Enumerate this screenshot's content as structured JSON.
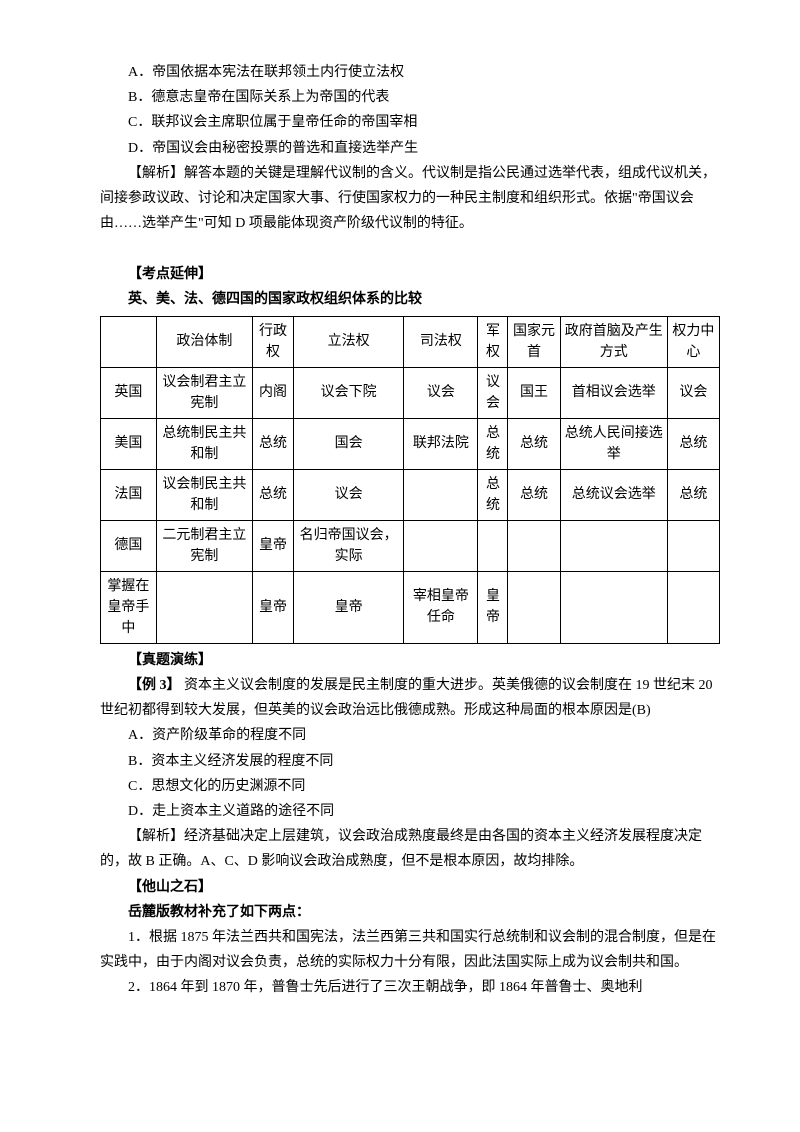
{
  "options": {
    "a": "A．帝国依据本宪法在联邦领土内行使立法权",
    "b": "B．德意志皇帝在国际关系上为帝国的代表",
    "c": "C．联邦议会主席职位属于皇帝任命的帝国宰相",
    "d": "D．帝国议会由秘密投票的普选和直接选举产生"
  },
  "analysis1": "【解析】解答本题的关键是理解代议制的含义。代议制是指公民通过选举代表，组成代议机关，间接参政议政、讨论和决定国家大事、行使国家权力的一种民主制度和组织形式。依据\"帝国议会由……选举产生\"可知 D 项最能体现资产阶级代议制的特征。",
  "extHeading": "【考点延伸】",
  "extTitle": "英、美、法、德四国的国家政权组织体系的比较",
  "table": {
    "headers": [
      "",
      "政治体制",
      "行政权",
      "立法权",
      "司法权",
      "军权",
      "国家元首",
      "政府首脑及产生方式",
      "权力中心"
    ],
    "rows": [
      [
        "英国",
        "议会制君主立宪制",
        "内阁",
        "议会下院",
        "议会",
        "议会",
        "国王",
        "首相议会选举",
        "议会"
      ],
      [
        "美国",
        "总统制民主共和制",
        "总统",
        "国会",
        "联邦法院",
        "总统",
        "总统",
        "总统人民间接选举",
        "总统"
      ],
      [
        "法国",
        "议会制民主共和制",
        "总统",
        "议会",
        "",
        "总统",
        "总统",
        "总统议会选举",
        "总统"
      ],
      [
        "德国",
        "二元制君主立宪制",
        "皇帝",
        "名归帝国议会，实际",
        "",
        "",
        "",
        "",
        ""
      ],
      [
        "掌握在皇帝手中",
        "",
        "皇帝",
        "皇帝",
        "宰相皇帝任命",
        "皇帝",
        "",
        "",
        ""
      ]
    ]
  },
  "practiceHeading": "【真题演练】",
  "example3Label": "【例 3】",
  "example3Text": " 资本主义议会制度的发展是民主制度的重大进步。英美俄德的议会制度在 19 世纪末 20 世纪初都得到较大发展，但英美的议会政治远比俄德成熟。形成这种局面的根本原因是(B)",
  "q2options": {
    "a": "A．资产阶级革命的程度不同",
    "b": "B．资本主义经济发展的程度不同",
    "c": "C．思想文化的历史渊源不同",
    "d": "D．走上资本主义道路的途径不同"
  },
  "analysis2": "【解析】经济基础决定上层建筑，议会政治成熟度最终是由各国的资本主义经济发展程度决定的，故 B 正确。A、C、D 影响议会政治成熟度，但不是根本原因，故均排除。",
  "stoneHeading": "【他山之石】",
  "stoneTitle": "岳麓版教材补充了如下两点：",
  "stone1": "1．根据 1875 年法兰西共和国宪法，法兰西第三共和国实行总统制和议会制的混合制度，但是在实践中，由于内阁对议会负责，总统的实际权力十分有限，因此法国实际上成为议会制共和国。",
  "stone2": "2．1864 年到 1870 年，普鲁士先后进行了三次王朝战争，即 1864 年普鲁士、奥地利"
}
